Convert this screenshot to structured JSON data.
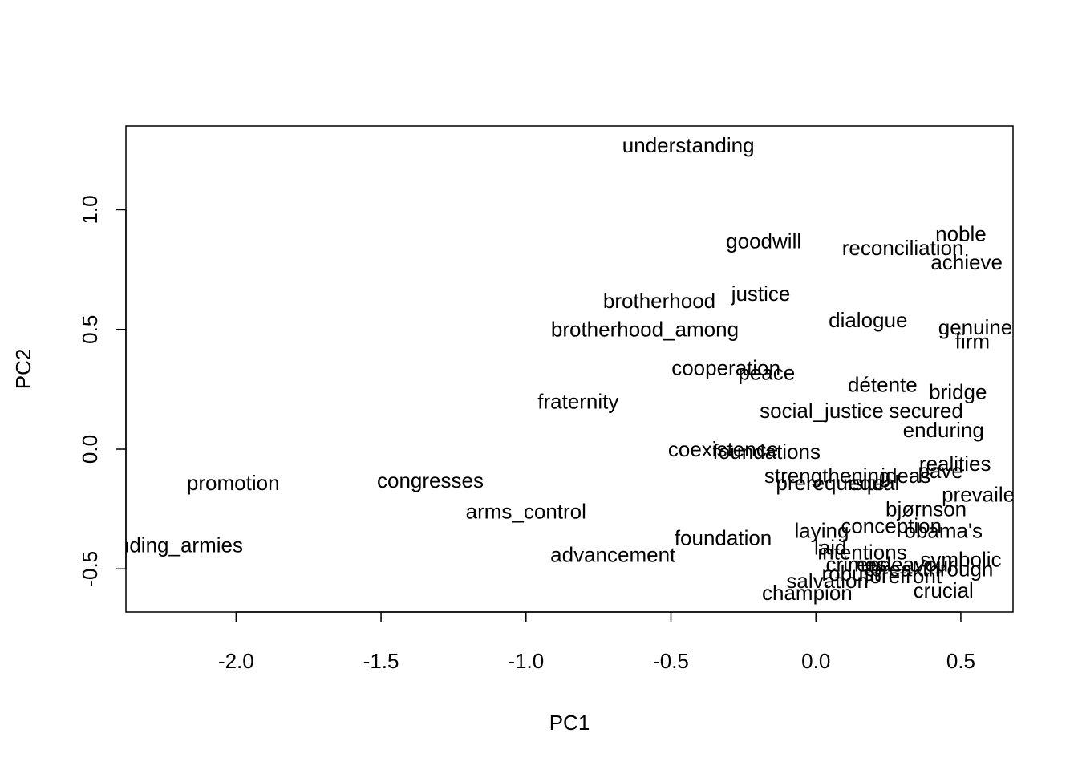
{
  "chart_data": {
    "type": "scatter",
    "title": "",
    "xlabel": "PC1",
    "ylabel": "PC2",
    "xlim": [
      -2.38,
      0.68
    ],
    "ylim": [
      -0.68,
      1.35
    ],
    "x_ticks": [
      -2.0,
      -1.5,
      -1.0,
      -0.5,
      0.0,
      0.5
    ],
    "x_tick_labels": [
      "-2.0",
      "-1.5",
      "-1.0",
      "-0.5",
      "0.0",
      "0.5"
    ],
    "y_ticks": [
      -0.5,
      0.0,
      0.5,
      1.0
    ],
    "y_tick_labels": [
      "-0.5",
      "0.0",
      "0.5",
      "1.0"
    ],
    "grid": false,
    "legend": "none",
    "points": [
      {
        "label": "understanding",
        "x": -0.44,
        "y": 1.27
      },
      {
        "label": "goodwill",
        "x": -0.18,
        "y": 0.87
      },
      {
        "label": "reconciliation",
        "x": 0.3,
        "y": 0.84
      },
      {
        "label": "noble",
        "x": 0.5,
        "y": 0.9
      },
      {
        "label": "achieve",
        "x": 0.52,
        "y": 0.78
      },
      {
        "label": "brotherhood",
        "x": -0.54,
        "y": 0.62
      },
      {
        "label": "justice",
        "x": -0.19,
        "y": 0.65
      },
      {
        "label": "brotherhood_among",
        "x": -0.59,
        "y": 0.5
      },
      {
        "label": "dialogue",
        "x": 0.18,
        "y": 0.54
      },
      {
        "label": "genuine",
        "x": 0.55,
        "y": 0.51
      },
      {
        "label": "firm",
        "x": 0.54,
        "y": 0.45
      },
      {
        "label": "cooperation",
        "x": -0.31,
        "y": 0.34
      },
      {
        "label": "peace",
        "x": -0.17,
        "y": 0.32
      },
      {
        "label": "détente",
        "x": 0.23,
        "y": 0.27
      },
      {
        "label": "bridge",
        "x": 0.49,
        "y": 0.24
      },
      {
        "label": "fraternity",
        "x": -0.82,
        "y": 0.2
      },
      {
        "label": "social_justice",
        "x": 0.02,
        "y": 0.16
      },
      {
        "label": "secured",
        "x": 0.38,
        "y": 0.16
      },
      {
        "label": "enduring",
        "x": 0.44,
        "y": 0.08
      },
      {
        "label": "coexistence",
        "x": -0.32,
        "y": 0.0
      },
      {
        "label": "foundations",
        "x": -0.17,
        "y": -0.01
      },
      {
        "label": "realities",
        "x": 0.48,
        "y": -0.06
      },
      {
        "label": "pave",
        "x": 0.43,
        "y": -0.09
      },
      {
        "label": "strengthening",
        "x": 0.04,
        "y": -0.11
      },
      {
        "label": "ideas",
        "x": 0.31,
        "y": -0.11
      },
      {
        "label": "prerequisite",
        "x": 0.05,
        "y": -0.14
      },
      {
        "label": "equal",
        "x": 0.2,
        "y": -0.14
      },
      {
        "label": "prevailed",
        "x": 0.58,
        "y": -0.19
      },
      {
        "label": "promotion",
        "x": -2.01,
        "y": -0.14
      },
      {
        "label": "congresses",
        "x": -1.33,
        "y": -0.13
      },
      {
        "label": "arms_control",
        "x": -1.0,
        "y": -0.26
      },
      {
        "label": "bjørnson",
        "x": 0.38,
        "y": -0.25
      },
      {
        "label": "conception",
        "x": 0.26,
        "y": -0.32
      },
      {
        "label": "obama's",
        "x": 0.44,
        "y": -0.34
      },
      {
        "label": "laying",
        "x": 0.02,
        "y": -0.34
      },
      {
        "label": "foundation",
        "x": -0.32,
        "y": -0.37
      },
      {
        "label": "standing_armies",
        "x": -2.24,
        "y": -0.4
      },
      {
        "label": "laid",
        "x": 0.05,
        "y": -0.41
      },
      {
        "label": "advancement",
        "x": -0.7,
        "y": -0.44
      },
      {
        "label": "intentions",
        "x": 0.16,
        "y": -0.43
      },
      {
        "label": "symbolic",
        "x": 0.5,
        "y": -0.46
      },
      {
        "label": "crimes",
        "x": 0.14,
        "y": -0.48
      },
      {
        "label": "endeavour",
        "x": 0.31,
        "y": -0.48
      },
      {
        "label": "breakthrough",
        "x": 0.4,
        "y": -0.5
      },
      {
        "label": "robust",
        "x": 0.12,
        "y": -0.52
      },
      {
        "label": "forefront",
        "x": 0.3,
        "y": -0.53
      },
      {
        "label": "salvation",
        "x": 0.04,
        "y": -0.55
      },
      {
        "label": "champion",
        "x": -0.03,
        "y": -0.6
      },
      {
        "label": "crucial",
        "x": 0.44,
        "y": -0.59
      }
    ]
  }
}
